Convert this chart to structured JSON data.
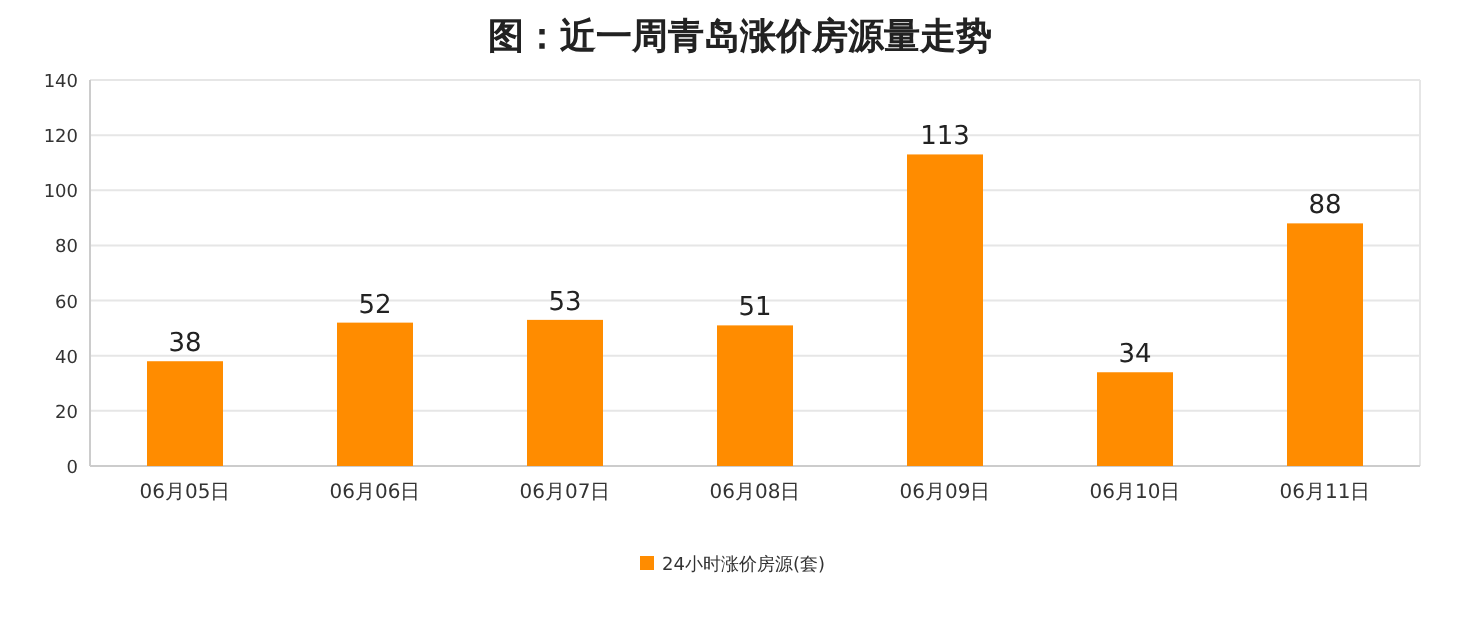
{
  "chart_data": {
    "type": "bar",
    "title": "图：近一周青岛涨价房源量走势",
    "categories": [
      "06月05日",
      "06月06日",
      "06月07日",
      "06月08日",
      "06月09日",
      "06月10日",
      "06月11日"
    ],
    "series": [
      {
        "name": "24小时涨价房源(套)",
        "color": "#ff8c00",
        "values": [
          38,
          52,
          53,
          51,
          113,
          34,
          88
        ]
      }
    ],
    "ylim": [
      0,
      140
    ],
    "yticks": [
      0,
      20,
      40,
      60,
      80,
      100,
      120,
      140
    ],
    "grid": "y",
    "legend": "bottom",
    "data_labels": true
  }
}
